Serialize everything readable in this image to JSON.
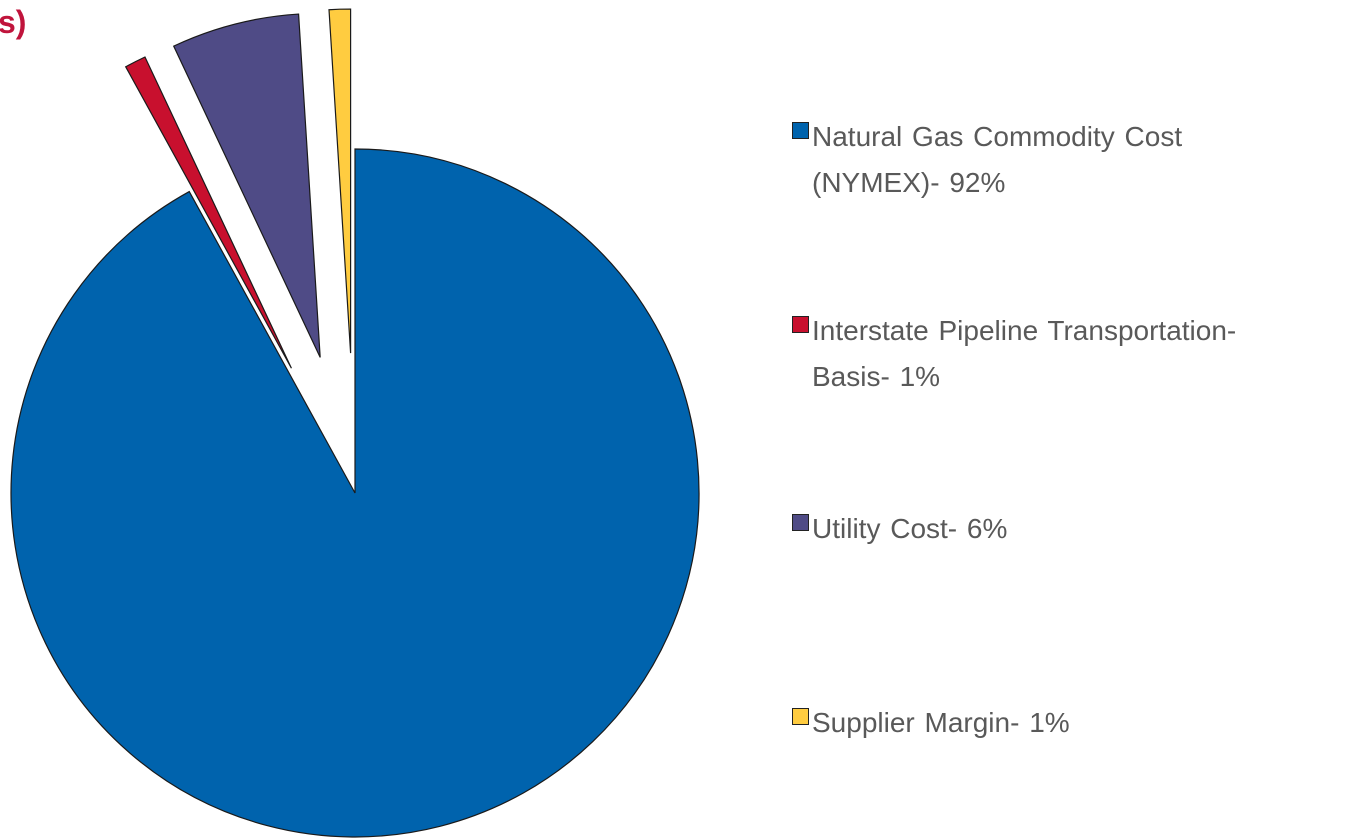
{
  "title_fragment": "s)",
  "chart_data": {
    "type": "pie",
    "title": "",
    "exploded": true,
    "slices": [
      {
        "label": "Natural Gas Commodity Cost (NYMEX)- 92%",
        "value": 92,
        "color": "#0063ad"
      },
      {
        "label": "Interstate Pipeline Transportation-Basis- 1%",
        "value": 1,
        "color": "#c8102e"
      },
      {
        "label": "Utility Cost- 6%",
        "value": 6,
        "color": "#4f4b86"
      },
      {
        "label": "Supplier Margin- 1%",
        "value": 1,
        "color": "#ffcc40"
      }
    ],
    "legend_position": "right"
  },
  "legend": {
    "items": [
      {
        "line1": "Natural Gas Commodity Cost",
        "line2": "(NYMEX)- 92%"
      },
      {
        "line1": "Interstate Pipeline Transportation-",
        "line2": "Basis- 1%"
      },
      {
        "line1": "Utility Cost- 6%",
        "line2": ""
      },
      {
        "line1": "Supplier Margin- 1%",
        "line2": ""
      }
    ]
  }
}
